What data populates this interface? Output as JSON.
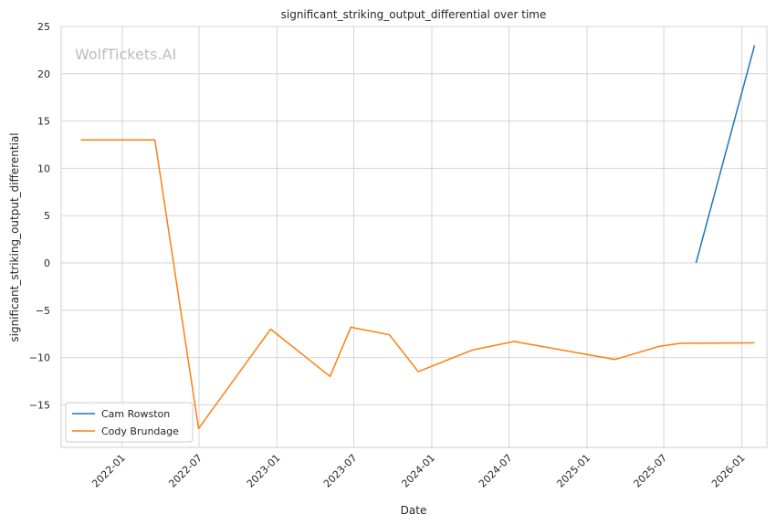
{
  "watermark": "WolfTickets.AI",
  "chart_data": {
    "type": "line",
    "title": "significant_striking_output_differential over time",
    "xlabel": "Date",
    "ylabel": "significant_striking_output_differential",
    "x_ticks": [
      "2022-01",
      "2022-07",
      "2023-01",
      "2023-07",
      "2024-01",
      "2024-07",
      "2025-01",
      "2025-07",
      "2026-01"
    ],
    "y_ticks": [
      -15,
      -10,
      -5,
      0,
      5,
      10,
      15,
      20,
      25
    ],
    "xlim": [
      "2021-08-10",
      "2026-03-01"
    ],
    "ylim": [
      -19.5,
      25
    ],
    "grid": true,
    "legend_position": "lower-left",
    "series": [
      {
        "name": "Cam Rowston",
        "color": "#1f77b4",
        "points": [
          {
            "x": "2025-09-15",
            "y": 0
          },
          {
            "x": "2026-01-31",
            "y": 23
          }
        ]
      },
      {
        "name": "Cody Brundage",
        "color": "#ff7f0e",
        "points": [
          {
            "x": "2021-09-25",
            "y": 13
          },
          {
            "x": "2022-03-19",
            "y": 13
          },
          {
            "x": "2022-06-30",
            "y": -17.5
          },
          {
            "x": "2022-12-17",
            "y": -7
          },
          {
            "x": "2023-05-06",
            "y": -12
          },
          {
            "x": "2023-06-24",
            "y": -6.8
          },
          {
            "x": "2023-09-23",
            "y": -7.6
          },
          {
            "x": "2023-11-30",
            "y": -11.5
          },
          {
            "x": "2024-04-06",
            "y": -9.2
          },
          {
            "x": "2024-07-13",
            "y": -8.3
          },
          {
            "x": "2025-03-08",
            "y": -10.2
          },
          {
            "x": "2025-06-21",
            "y": -8.8
          },
          {
            "x": "2025-08-09",
            "y": -8.5
          },
          {
            "x": "2026-01-31",
            "y": -8.45
          }
        ]
      }
    ]
  }
}
